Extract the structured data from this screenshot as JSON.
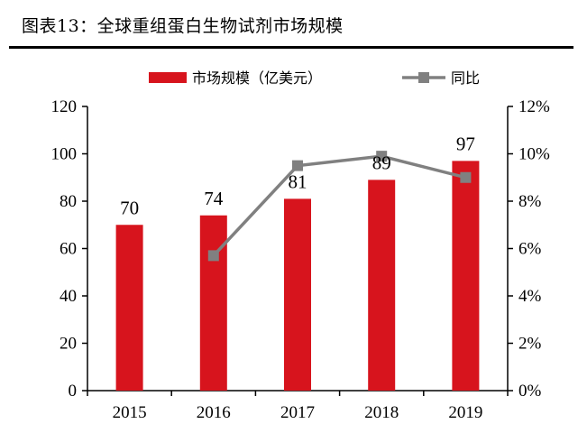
{
  "title": "图表13：全球重组蛋白生物试剂市场规模",
  "colors": {
    "bar": "#d7141d",
    "line": "#808080",
    "axis": "#000000"
  },
  "chart_data": {
    "type": "bar",
    "categories": [
      "2015",
      "2016",
      "2017",
      "2018",
      "2019"
    ],
    "series": [
      {
        "name": "市场规模（亿美元）",
        "type": "bar",
        "axis": "left",
        "values": [
          70,
          74,
          81,
          89,
          97
        ],
        "labels": [
          "70",
          "74",
          "81",
          "89",
          "97"
        ]
      },
      {
        "name": "同比",
        "type": "line",
        "axis": "right",
        "values": [
          null,
          5.7,
          9.5,
          9.9,
          9.0
        ]
      }
    ],
    "ylim_left": [
      0,
      120
    ],
    "yticks_left": [
      "0",
      "20",
      "40",
      "60",
      "80",
      "100",
      "120"
    ],
    "ylim_right": [
      0,
      12
    ],
    "yticks_right": [
      "0%",
      "2%",
      "4%",
      "6%",
      "8%",
      "10%",
      "12%"
    ],
    "legend_position": "top-center",
    "grid": false
  }
}
